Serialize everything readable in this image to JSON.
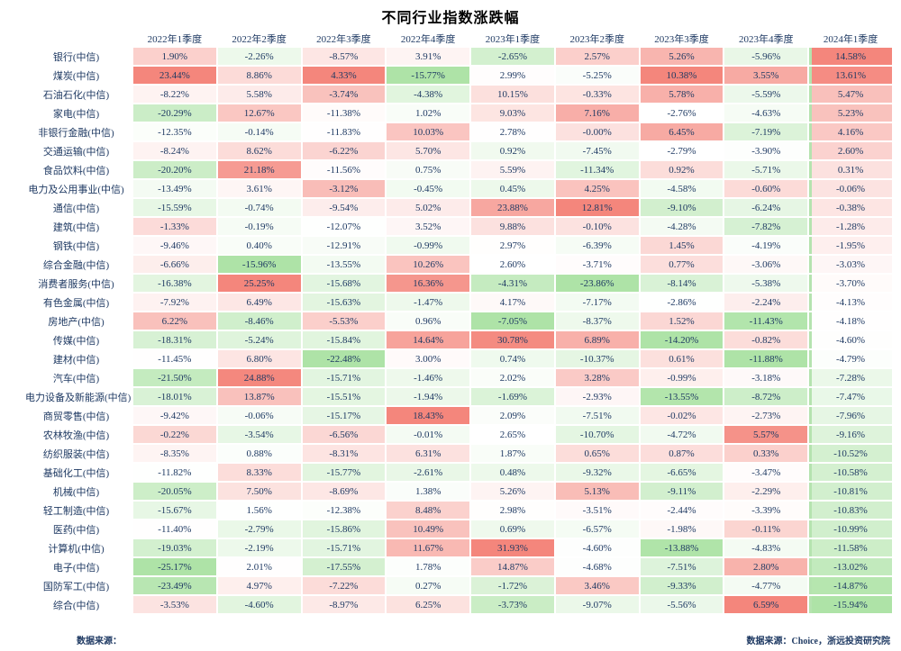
{
  "page": {
    "title": "不同行业指数涨跌幅"
  },
  "footer": {
    "source_left": "数据来源：",
    "source_right": "数据来源：Choice，浙远投资研究院"
  },
  "chart_data": {
    "type": "heatmap",
    "title": "不同行业指数涨跌幅",
    "columns": [
      "2022年1季度",
      "2022年2季度",
      "2022年3季度",
      "2022年4季度",
      "2023年1季度",
      "2023年2季度",
      "2023年3季度",
      "2023年4季度",
      "2024年1季度"
    ],
    "rows": [
      {
        "label": "银行(中信)",
        "values": [
          "1.90%",
          "-2.26%",
          "-8.57%",
          "3.91%",
          "-2.65%",
          "2.57%",
          "5.26%",
          "-5.96%",
          "14.58%"
        ]
      },
      {
        "label": "煤炭(中信)",
        "values": [
          "23.44%",
          "8.86%",
          "4.33%",
          "-15.77%",
          "2.99%",
          "-5.25%",
          "10.38%",
          "3.55%",
          "13.61%"
        ]
      },
      {
        "label": "石油石化(中信)",
        "values": [
          "-8.22%",
          "5.58%",
          "-3.74%",
          "-4.38%",
          "10.15%",
          "-0.33%",
          "5.78%",
          "-5.59%",
          "5.47%"
        ]
      },
      {
        "label": "家电(中信)",
        "values": [
          "-20.29%",
          "12.67%",
          "-11.38%",
          "1.02%",
          "9.03%",
          "7.16%",
          "-2.76%",
          "-4.63%",
          "5.23%"
        ]
      },
      {
        "label": "非银行金融(中信)",
        "values": [
          "-12.35%",
          "-0.14%",
          "-11.83%",
          "10.03%",
          "2.78%",
          "-0.00%",
          "6.45%",
          "-7.19%",
          "4.16%"
        ]
      },
      {
        "label": "交通运输(中信)",
        "values": [
          "-8.24%",
          "8.62%",
          "-6.22%",
          "5.70%",
          "0.92%",
          "-7.45%",
          "-2.79%",
          "-3.90%",
          "2.60%"
        ]
      },
      {
        "label": "食品饮料(中信)",
        "values": [
          "-20.20%",
          "21.18%",
          "-11.56%",
          "0.75%",
          "5.59%",
          "-11.34%",
          "0.92%",
          "-5.71%",
          "0.31%"
        ]
      },
      {
        "label": "电力及公用事业(中信)",
        "values": [
          "-13.49%",
          "3.61%",
          "-3.12%",
          "-0.45%",
          "0.45%",
          "4.25%",
          "-4.58%",
          "-0.60%",
          "-0.06%"
        ]
      },
      {
        "label": "通信(中信)",
        "values": [
          "-15.59%",
          "-0.74%",
          "-9.54%",
          "5.02%",
          "23.88%",
          "12.81%",
          "-9.10%",
          "-6.24%",
          "-0.38%"
        ]
      },
      {
        "label": "建筑(中信)",
        "values": [
          "-1.33%",
          "-0.19%",
          "-12.07%",
          "3.52%",
          "9.88%",
          "-0.10%",
          "-4.28%",
          "-7.82%",
          "-1.28%"
        ]
      },
      {
        "label": "钢铁(中信)",
        "values": [
          "-9.46%",
          "0.40%",
          "-12.91%",
          "-0.99%",
          "2.97%",
          "-6.39%",
          "1.45%",
          "-4.19%",
          "-1.95%"
        ]
      },
      {
        "label": "综合金融(中信)",
        "values": [
          "-6.66%",
          "-15.96%",
          "-13.55%",
          "10.26%",
          "2.60%",
          "-3.71%",
          "0.77%",
          "-3.06%",
          "-3.03%"
        ]
      },
      {
        "label": "消费者服务(中信)",
        "values": [
          "-16.38%",
          "25.25%",
          "-15.68%",
          "16.36%",
          "-4.31%",
          "-23.86%",
          "-8.14%",
          "-5.38%",
          "-3.70%"
        ]
      },
      {
        "label": "有色金属(中信)",
        "values": [
          "-7.92%",
          "6.49%",
          "-15.63%",
          "-1.47%",
          "4.17%",
          "-7.17%",
          "-2.86%",
          "-2.24%",
          "-4.13%"
        ]
      },
      {
        "label": "房地产(中信)",
        "values": [
          "6.22%",
          "-8.46%",
          "-5.53%",
          "0.96%",
          "-7.05%",
          "-8.37%",
          "1.52%",
          "-11.43%",
          "-4.18%"
        ]
      },
      {
        "label": "传媒(中信)",
        "values": [
          "-18.31%",
          "-5.24%",
          "-15.84%",
          "14.64%",
          "30.78%",
          "6.89%",
          "-14.20%",
          "-0.82%",
          "-4.60%"
        ]
      },
      {
        "label": "建材(中信)",
        "values": [
          "-11.45%",
          "6.80%",
          "-22.48%",
          "3.00%",
          "0.74%",
          "-10.37%",
          "0.61%",
          "-11.88%",
          "-4.79%"
        ]
      },
      {
        "label": "汽车(中信)",
        "values": [
          "-21.50%",
          "24.88%",
          "-15.71%",
          "-1.46%",
          "2.02%",
          "3.28%",
          "-0.99%",
          "-3.18%",
          "-7.28%"
        ]
      },
      {
        "label": "电力设备及新能源(中信)",
        "values": [
          "-18.01%",
          "13.87%",
          "-15.51%",
          "-1.94%",
          "-1.69%",
          "-2.93%",
          "-13.55%",
          "-8.72%",
          "-7.47%"
        ]
      },
      {
        "label": "商贸零售(中信)",
        "values": [
          "-9.42%",
          "-0.06%",
          "-15.17%",
          "18.43%",
          "2.09%",
          "-7.51%",
          "-0.02%",
          "-2.73%",
          "-7.96%"
        ]
      },
      {
        "label": "农林牧渔(中信)",
        "values": [
          "-0.22%",
          "-3.54%",
          "-6.56%",
          "-0.01%",
          "2.65%",
          "-10.70%",
          "-4.72%",
          "5.57%",
          "-9.16%"
        ]
      },
      {
        "label": "纺织服装(中信)",
        "values": [
          "-8.35%",
          "0.88%",
          "-8.31%",
          "6.31%",
          "1.87%",
          "0.65%",
          "0.87%",
          "0.33%",
          "-10.52%"
        ]
      },
      {
        "label": "基础化工(中信)",
        "values": [
          "-11.82%",
          "8.33%",
          "-15.77%",
          "-2.61%",
          "0.48%",
          "-9.32%",
          "-6.65%",
          "-3.47%",
          "-10.58%"
        ]
      },
      {
        "label": "机械(中信)",
        "values": [
          "-20.05%",
          "7.50%",
          "-8.69%",
          "1.38%",
          "5.26%",
          "5.13%",
          "-9.11%",
          "-2.29%",
          "-10.81%"
        ]
      },
      {
        "label": "轻工制造(中信)",
        "values": [
          "-15.67%",
          "1.56%",
          "-12.38%",
          "8.48%",
          "2.98%",
          "-3.51%",
          "-2.44%",
          "-3.39%",
          "-10.83%"
        ]
      },
      {
        "label": "医药(中信)",
        "values": [
          "-11.40%",
          "-2.79%",
          "-15.86%",
          "10.49%",
          "0.69%",
          "-6.57%",
          "-1.98%",
          "-0.11%",
          "-10.99%"
        ]
      },
      {
        "label": "计算机(中信)",
        "values": [
          "-19.03%",
          "-2.19%",
          "-15.71%",
          "11.67%",
          "31.93%",
          "-4.60%",
          "-13.88%",
          "-4.83%",
          "-11.58%"
        ]
      },
      {
        "label": "电子(中信)",
        "values": [
          "-25.17%",
          "2.01%",
          "-17.55%",
          "1.78%",
          "14.87%",
          "-4.68%",
          "-7.51%",
          "2.80%",
          "-13.02%"
        ]
      },
      {
        "label": "国防军工(中信)",
        "values": [
          "-23.49%",
          "4.97%",
          "-7.22%",
          "0.27%",
          "-1.72%",
          "3.46%",
          "-9.33%",
          "-4.77%",
          "-14.87%"
        ]
      },
      {
        "label": "综合(中信)",
        "values": [
          "-3.53%",
          "-4.60%",
          "-8.97%",
          "6.25%",
          "-3.73%",
          "-9.07%",
          "-5.56%",
          "6.59%",
          "-15.94%"
        ]
      }
    ],
    "color_scale": {
      "max_color": "#f4867c",
      "mid_color": "#ffffff",
      "min_color": "#aee3a7",
      "midpoint": "per-column median",
      "scaling": "per-column"
    },
    "highlight_last_column_color": "#b5e3af",
    "legend_position": "none",
    "grid": false
  }
}
